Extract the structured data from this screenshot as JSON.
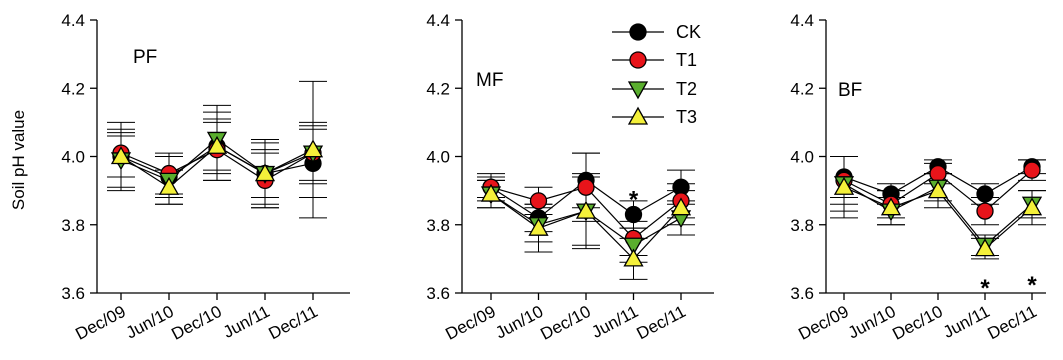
{
  "chart_data": [
    {
      "type": "line",
      "panel": "PF",
      "ylabel": "Soil pH value",
      "ylim": [
        3.6,
        4.4
      ],
      "yticks": [
        "3.6",
        "3.8",
        "4.0",
        "4.2",
        "4.4"
      ],
      "categories": [
        "Dec/09",
        "Jun/10",
        "Dec/10",
        "Jun/11",
        "Dec/11"
      ],
      "series": [
        {
          "name": "CK",
          "values": [
            4.0,
            3.94,
            4.03,
            3.95,
            3.98
          ],
          "errors": [
            0.1,
            0.06,
            0.1,
            0.1,
            0.1
          ]
        },
        {
          "name": "T1",
          "values": [
            4.01,
            3.95,
            4.02,
            3.93,
            4.01
          ],
          "errors": [
            0.07,
            0.06,
            0.09,
            0.08,
            0.08
          ]
        },
        {
          "name": "T2",
          "values": [
            3.99,
            3.93,
            4.05,
            3.95,
            4.01
          ],
          "errors": [
            0.08,
            0.07,
            0.1,
            0.09,
            0.09
          ]
        },
        {
          "name": "T3",
          "values": [
            4.0,
            3.91,
            4.03,
            3.95,
            4.02
          ],
          "errors": [
            0.06,
            0.05,
            0.07,
            0.07,
            0.2
          ]
        }
      ],
      "annotations": []
    },
    {
      "type": "line",
      "panel": "MF",
      "ylabel": "",
      "ylim": [
        3.6,
        4.4
      ],
      "yticks": [
        "3.6",
        "3.8",
        "4.0",
        "4.2",
        "4.4"
      ],
      "categories": [
        "Dec/09",
        "Jun/10",
        "Dec/10",
        "Jun/11",
        "Dec/11"
      ],
      "series": [
        {
          "name": "CK",
          "values": [
            3.91,
            3.82,
            3.93,
            3.83,
            3.91
          ],
          "errors": [
            0.04,
            0.04,
            0.08,
            0.04,
            0.05
          ]
        },
        {
          "name": "T1",
          "values": [
            3.91,
            3.87,
            3.91,
            3.76,
            3.87
          ],
          "errors": [
            0.03,
            0.04,
            0.1,
            0.05,
            0.05
          ]
        },
        {
          "name": "T2",
          "values": [
            3.89,
            3.8,
            3.84,
            3.74,
            3.82
          ],
          "errors": [
            0.04,
            0.05,
            0.1,
            0.05,
            0.05
          ]
        },
        {
          "name": "T3",
          "values": [
            3.89,
            3.79,
            3.84,
            3.7,
            3.85
          ],
          "errors": [
            0.04,
            0.07,
            0.11,
            0.06,
            0.05
          ]
        }
      ],
      "annotations": [
        {
          "text": "*",
          "category": "Jun/11",
          "value": 3.88
        }
      ]
    },
    {
      "type": "line",
      "panel": "BF",
      "ylabel": "",
      "ylim": [
        3.6,
        4.4
      ],
      "yticks": [
        "3.6",
        "3.8",
        "4.0",
        "4.2",
        "4.4"
      ],
      "categories": [
        "Dec/09",
        "Jun/10",
        "Dec/10",
        "Jun/11",
        "Dec/11"
      ],
      "series": [
        {
          "name": "CK",
          "values": [
            3.94,
            3.89,
            3.97,
            3.89,
            3.97
          ],
          "errors": [
            0.06,
            0.03,
            0.02,
            0.03,
            0.02
          ]
        },
        {
          "name": "T1",
          "values": [
            3.93,
            3.86,
            3.95,
            3.84,
            3.96
          ],
          "errors": [
            0.07,
            0.04,
            0.03,
            0.04,
            0.03
          ]
        },
        {
          "name": "T2",
          "values": [
            3.92,
            3.84,
            3.91,
            3.74,
            3.86
          ],
          "errors": [
            0.08,
            0.04,
            0.04,
            0.03,
            0.04
          ]
        },
        {
          "name": "T3",
          "values": [
            3.91,
            3.85,
            3.9,
            3.73,
            3.85
          ],
          "errors": [
            0.09,
            0.05,
            0.05,
            0.03,
            0.05
          ]
        }
      ],
      "annotations": [
        {
          "text": "*",
          "category": "Jun/11",
          "value": 3.62
        },
        {
          "text": "*",
          "category": "Dec/11",
          "value": 3.63
        }
      ]
    }
  ],
  "legend": {
    "placement": "top-right of middle panel",
    "entries": [
      "CK",
      "T1",
      "T2",
      "T3"
    ]
  },
  "series_colors": {
    "CK": "#000000",
    "T1": "#e8141a",
    "T2": "#5aae2e",
    "T3": "#f4f03a"
  },
  "series_markers": {
    "CK": "circle",
    "T1": "circle",
    "T2": "triangle-down",
    "T3": "triangle-up"
  }
}
